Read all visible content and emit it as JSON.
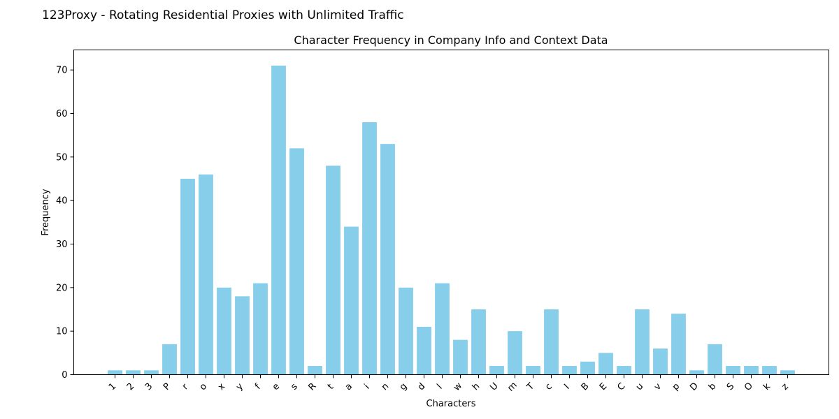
{
  "page": {
    "suptitle": "123Proxy - Rotating Residential Proxies with Unlimited Traffic"
  },
  "chart_data": {
    "type": "bar",
    "title": "Character Frequency in Company Info and Context Data",
    "xlabel": "Characters",
    "ylabel": "Frequency",
    "ylim": [
      0,
      74.6
    ],
    "yticks": [
      0,
      10,
      20,
      30,
      40,
      50,
      60,
      70
    ],
    "grid": false,
    "bar_color": "#87ceeb",
    "categories": [
      "1",
      "2",
      "3",
      "P",
      "r",
      "o",
      "x",
      "y",
      "f",
      "e",
      "s",
      "R",
      "t",
      "a",
      "i",
      "n",
      "g",
      "d",
      "l",
      "w",
      "h",
      "U",
      "m",
      "T",
      "c",
      "I",
      "B",
      "E",
      "C",
      "u",
      "v",
      "p",
      "D",
      "b",
      "S",
      "O",
      "k",
      "z"
    ],
    "values": [
      1,
      1,
      1,
      7,
      45,
      46,
      20,
      18,
      21,
      71,
      52,
      2,
      48,
      34,
      58,
      53,
      20,
      11,
      21,
      8,
      15,
      2,
      10,
      2,
      15,
      2,
      3,
      5,
      2,
      15,
      6,
      14,
      1,
      7,
      2,
      2,
      2,
      1
    ]
  }
}
